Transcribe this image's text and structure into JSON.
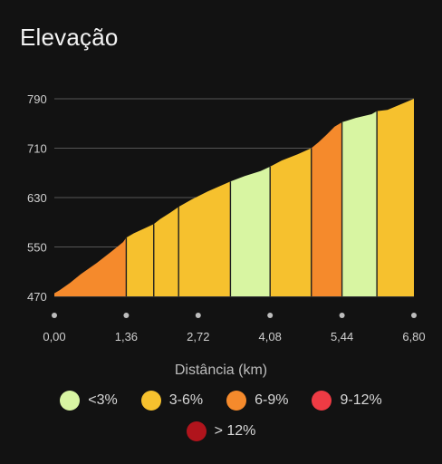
{
  "title": "Elevação",
  "chart_data": {
    "type": "area",
    "xlabel": "Distância (km)",
    "ylabel": "",
    "xlim": [
      0,
      6.8
    ],
    "ylim": [
      470,
      790
    ],
    "x_ticks": [
      "0,00",
      "1,36",
      "2,72",
      "4,08",
      "5,44",
      "6,80"
    ],
    "y_ticks": [
      "470",
      "550",
      "630",
      "710",
      "790"
    ],
    "profile": {
      "x": [
        0.0,
        0.1,
        0.3,
        0.5,
        0.8,
        1.1,
        1.3,
        1.36,
        1.5,
        1.7,
        1.88,
        2.0,
        2.2,
        2.35,
        2.6,
        2.9,
        3.3,
        3.6,
        3.9,
        4.08,
        4.3,
        4.6,
        4.86,
        5.0,
        5.15,
        5.3,
        5.44,
        5.7,
        6.0,
        6.1,
        6.3,
        6.55,
        6.8
      ],
      "y": [
        475,
        480,
        492,
        506,
        524,
        544,
        558,
        565,
        572,
        580,
        587,
        595,
        606,
        615,
        627,
        640,
        655,
        665,
        673,
        680,
        690,
        700,
        710,
        720,
        732,
        745,
        752,
        759,
        765,
        770,
        772,
        781,
        790
      ]
    },
    "segments": [
      {
        "start": 0.0,
        "end": 1.36,
        "category": "6-9%"
      },
      {
        "start": 1.36,
        "end": 1.88,
        "category": "3-6%"
      },
      {
        "start": 1.88,
        "end": 2.35,
        "category": "3-6%"
      },
      {
        "start": 2.35,
        "end": 3.33,
        "category": "3-6%"
      },
      {
        "start": 3.33,
        "end": 4.08,
        "category": "<3%"
      },
      {
        "start": 4.08,
        "end": 4.86,
        "category": "3-6%"
      },
      {
        "start": 4.86,
        "end": 5.44,
        "category": "6-9%"
      },
      {
        "start": 5.44,
        "end": 6.1,
        "category": "<3%"
      },
      {
        "start": 6.1,
        "end": 6.8,
        "category": "3-6%"
      }
    ],
    "grid": true
  },
  "legend": [
    {
      "label": "<3%",
      "color": "#d8f5a2"
    },
    {
      "label": "3-6%",
      "color": "#f6c12e"
    },
    {
      "label": "6-9%",
      "color": "#f58a2c"
    },
    {
      "label": "9-12%",
      "color": "#ee3b44"
    },
    {
      "label": "> 12%",
      "color": "#b0141c"
    }
  ],
  "colors": {
    "background": "#121212",
    "grid": "#555555",
    "divider": "#1f1f1f",
    "tick_text": "#cfcfcf",
    "dot": "#bdbdbd"
  }
}
